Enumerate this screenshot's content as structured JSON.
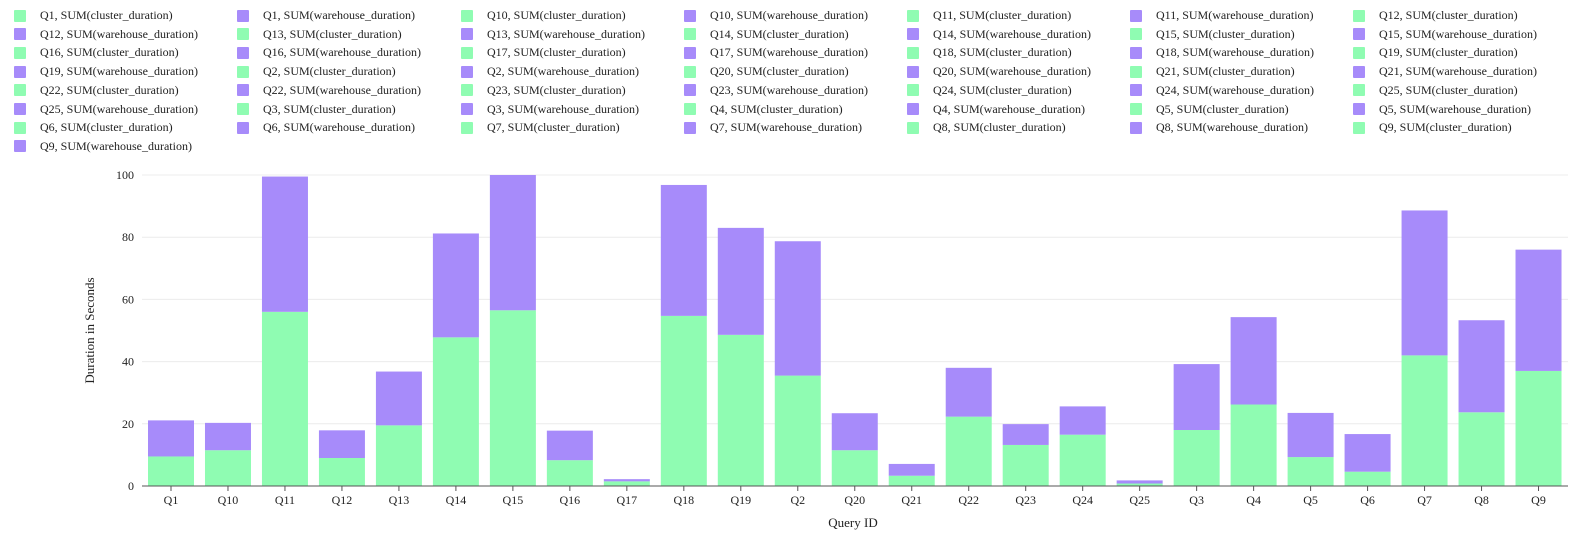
{
  "chart_data": {
    "type": "bar",
    "stacked": true,
    "title": "",
    "xlabel": "Query ID",
    "ylabel": "Duration in Seconds",
    "ylim": [
      0,
      100
    ],
    "yticks": [
      0,
      20,
      40,
      60,
      80,
      100
    ],
    "grid": true,
    "colors": {
      "cluster": "#8ffcb2",
      "warehouse": "#a78bfa"
    },
    "categories": [
      "Q1",
      "Q10",
      "Q11",
      "Q12",
      "Q13",
      "Q14",
      "Q15",
      "Q16",
      "Q17",
      "Q18",
      "Q19",
      "Q2",
      "Q20",
      "Q21",
      "Q22",
      "Q23",
      "Q24",
      "Q25",
      "Q3",
      "Q4",
      "Q5",
      "Q6",
      "Q7",
      "Q8",
      "Q9"
    ],
    "series": [
      {
        "name": "SUM(cluster_duration)",
        "key": "cluster",
        "values": [
          9.5,
          11.5,
          56,
          9,
          19.5,
          47.8,
          56.5,
          8.3,
          1.5,
          54.7,
          48.6,
          35.5,
          11.5,
          3.3,
          22.3,
          13.2,
          16.5,
          0.8,
          18,
          26.2,
          9.3,
          4.6,
          42,
          23.7,
          37
        ]
      },
      {
        "name": "SUM(warehouse_duration)",
        "key": "warehouse",
        "values": [
          11.6,
          8.8,
          43.5,
          8.9,
          17.3,
          33.4,
          43.5,
          9.5,
          0.7,
          42.1,
          34.4,
          43.2,
          11.9,
          3.8,
          15.7,
          6.7,
          9.1,
          1.0,
          21.2,
          28.1,
          14.2,
          12.1,
          46.6,
          29.6,
          39
        ]
      }
    ],
    "legend": {
      "placement": "top",
      "entries": [
        "Q1, SUM(cluster_duration)",
        "Q1, SUM(warehouse_duration)",
        "Q10, SUM(cluster_duration)",
        "Q10, SUM(warehouse_duration)",
        "Q11, SUM(cluster_duration)",
        "Q11, SUM(warehouse_duration)",
        "Q12, SUM(cluster_duration)",
        "Q12, SUM(warehouse_duration)",
        "Q13, SUM(cluster_duration)",
        "Q13, SUM(warehouse_duration)",
        "Q14, SUM(cluster_duration)",
        "Q14, SUM(warehouse_duration)",
        "Q15, SUM(cluster_duration)",
        "Q15, SUM(warehouse_duration)",
        "Q16, SUM(cluster_duration)",
        "Q16, SUM(warehouse_duration)",
        "Q17, SUM(cluster_duration)",
        "Q17, SUM(warehouse_duration)",
        "Q18, SUM(cluster_duration)",
        "Q18, SUM(warehouse_duration)",
        "Q19, SUM(cluster_duration)",
        "Q19, SUM(warehouse_duration)",
        "Q2, SUM(cluster_duration)",
        "Q2, SUM(warehouse_duration)",
        "Q20, SUM(cluster_duration)",
        "Q20, SUM(warehouse_duration)",
        "Q21, SUM(cluster_duration)",
        "Q21, SUM(warehouse_duration)",
        "Q22, SUM(cluster_duration)",
        "Q22, SUM(warehouse_duration)",
        "Q23, SUM(cluster_duration)",
        "Q23, SUM(warehouse_duration)",
        "Q24, SUM(cluster_duration)",
        "Q24, SUM(warehouse_duration)",
        "Q25, SUM(cluster_duration)",
        "Q25, SUM(warehouse_duration)",
        "Q3, SUM(cluster_duration)",
        "Q3, SUM(warehouse_duration)",
        "Q4, SUM(cluster_duration)",
        "Q4, SUM(warehouse_duration)",
        "Q5, SUM(cluster_duration)",
        "Q5, SUM(warehouse_duration)",
        "Q6, SUM(cluster_duration)",
        "Q6, SUM(warehouse_duration)",
        "Q7, SUM(cluster_duration)",
        "Q7, SUM(warehouse_duration)",
        "Q8, SUM(cluster_duration)",
        "Q8, SUM(warehouse_duration)",
        "Q9, SUM(cluster_duration)",
        "Q9, SUM(warehouse_duration)"
      ]
    }
  }
}
